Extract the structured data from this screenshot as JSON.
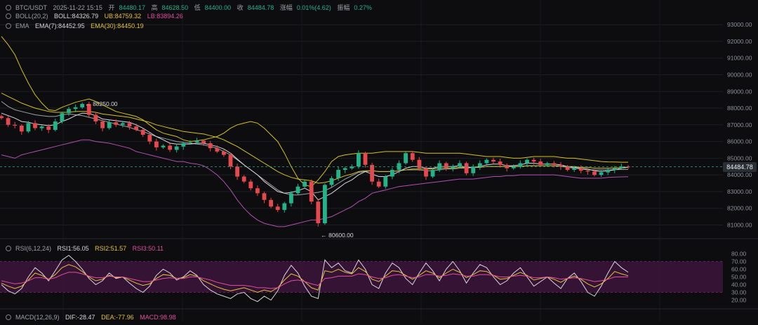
{
  "header": {
    "symbol": "BTC/USDT",
    "datetime": "2025-11-22 15:15",
    "open_label": "开",
    "open": "84480.17",
    "high_label": "高",
    "high": "84628.50",
    "low_label": "低",
    "low": "84400.00",
    "close_label": "收",
    "close": "84484.78",
    "change_label": "涨幅",
    "change": "0.01%(4.62)",
    "amplitude_label": "振幅",
    "amplitude": "0.27%"
  },
  "indicators": {
    "boll": {
      "name": "BOLL(20,2)",
      "mid": "BOLL:84326.79",
      "ub": "UB:84759.32",
      "lb": "LB:83894.26"
    },
    "ema": {
      "name": "EMA",
      "ema7": "EMA(7):84452.95",
      "ema30": "EMA(30):84450.19"
    },
    "rsi": {
      "name": "RSI(6,12,24)",
      "rsi1": "RSI1:56.05",
      "rsi2": "RSI2:51.57",
      "rsi3": "RSI3:50.11"
    },
    "macd": {
      "name": "MACD(12,26,9)",
      "dif": "DIF:-28.47",
      "dea": "DEA:-77.96",
      "macd": "MACD:98.98"
    }
  },
  "price_tag": "84484.78",
  "colors": {
    "up": "#24b389",
    "down": "#e5484d",
    "ub_line": "#d4c21c",
    "lb_line": "#b14fb4",
    "mid_line": "#9ea3aa",
    "ema7": "#d6d8dc",
    "ema30": "#d4c21c",
    "rsi1": "#d6d8dc",
    "rsi2": "#e6c23a",
    "rsi3": "#e04fa0",
    "rsi_band": "#3a1438"
  },
  "chart_data": [
    {
      "type": "candlestick",
      "y_axis_ticks": [
        "93000.00",
        "92000.00",
        "91000.00",
        "90000.00",
        "89000.00",
        "88000.00",
        "87000.00",
        "86000.00",
        "85000.00",
        "84000.00",
        "83000.00",
        "82000.00",
        "81000.00"
      ],
      "ylim": [
        80600,
        93300
      ],
      "annotations": [
        "88250.00",
        "80600.00"
      ],
      "close": [
        87400,
        87000,
        86950,
        86600,
        87100,
        86800,
        86900,
        86700,
        87200,
        87700,
        87950,
        88050,
        88250,
        87600,
        87200,
        86800,
        87150,
        87000,
        87100,
        86900,
        86700,
        86400,
        86000,
        85650,
        85750,
        85500,
        85700,
        85900,
        85950,
        86050,
        85900,
        85600,
        85400,
        85200,
        84500,
        83900,
        83600,
        83200,
        82900,
        82500,
        82100,
        81900,
        82300,
        82900,
        83300,
        83600,
        82400,
        81100,
        83400,
        83800,
        84300,
        84400,
        84500,
        85300,
        84600,
        83600,
        83300,
        83900,
        84300,
        84700,
        85300,
        84900,
        84400,
        83900,
        84300,
        84700,
        84400,
        84500,
        84700,
        84100,
        84500,
        84700,
        84900,
        84800,
        84600,
        84400,
        84500,
        84700,
        84900,
        84800,
        84600,
        84700,
        84600,
        84500,
        84300,
        84400,
        84250,
        84200,
        84000,
        84150,
        84300,
        84400,
        84500,
        84484.78
      ],
      "ub": [
        92300,
        91800,
        91200,
        90300,
        89500,
        88800,
        88300,
        87900,
        87850,
        88050,
        88200,
        88350,
        88450,
        88550,
        88400,
        88200,
        88000,
        87800,
        87700,
        87600,
        87500,
        87300,
        87000,
        86700,
        86500,
        86400,
        86300,
        86100,
        86000,
        86050,
        86100,
        86200,
        86300,
        86500,
        86800,
        87000,
        87100,
        87200,
        87100,
        86800,
        86400,
        86000,
        85300,
        84500,
        83800,
        83400,
        83300,
        83700,
        84200,
        84800,
        85100,
        85200,
        85250,
        85300,
        85300,
        85300,
        85350,
        85400,
        85400,
        85400,
        85400,
        85400,
        85350,
        85300,
        85300,
        85300,
        85300,
        85300,
        85300,
        85250,
        85200,
        85150,
        85100,
        85100,
        85100,
        85050,
        85000,
        85000,
        85050,
        85100,
        85100,
        85100,
        85100,
        85050,
        85000,
        85000,
        84950,
        84900,
        84850,
        84800,
        84780,
        84770,
        84760,
        84759
      ],
      "mid": [
        88400,
        88100,
        87900,
        87800,
        87700,
        87600,
        87550,
        87500,
        87500,
        87600,
        87650,
        87600,
        87550,
        87450,
        87350,
        87250,
        87150,
        87050,
        86950,
        86850,
        86700,
        86600,
        86450,
        86300,
        86200,
        86100,
        86000,
        85950,
        85900,
        85850,
        85800,
        85700,
        85600,
        85400,
        85200,
        84900,
        84600,
        84300,
        84000,
        83700,
        83400,
        83100,
        82900,
        82800,
        82800,
        82850,
        82900,
        82950,
        83050,
        83250,
        83500,
        83750,
        83950,
        84150,
        84200,
        84250,
        84200,
        84200,
        84200,
        84250,
        84300,
        84300,
        84300,
        84250,
        84250,
        84300,
        84350,
        84350,
        84400,
        84400,
        84450,
        84450,
        84500,
        84500,
        84500,
        84500,
        84500,
        84500,
        84550,
        84550,
        84550,
        84550,
        84550,
        84500,
        84450,
        84400,
        84350,
        84300,
        84300,
        84300,
        84300,
        84310,
        84320,
        84327
      ],
      "lb": [
        85200,
        85100,
        85000,
        85200,
        85300,
        85400,
        85500,
        85600,
        85700,
        85800,
        85900,
        86000,
        86100,
        86100,
        86000,
        85950,
        85900,
        85800,
        85700,
        85600,
        85400,
        85300,
        85200,
        85100,
        85000,
        84900,
        84800,
        84800,
        84700,
        84650,
        84550,
        84300,
        84000,
        83600,
        83100,
        82500,
        82000,
        81600,
        81300,
        81100,
        81000,
        80900,
        80900,
        81000,
        81100,
        81200,
        81300,
        81300,
        81400,
        81500,
        81700,
        81900,
        82100,
        82400,
        82600,
        82900,
        83000,
        83100,
        83200,
        83300,
        83350,
        83400,
        83450,
        83500,
        83550,
        83600,
        83650,
        83700,
        83750,
        83750,
        83750,
        83800,
        83850,
        83900,
        83900,
        83950,
        83950,
        84000,
        84000,
        84000,
        84000,
        84000,
        84000,
        83950,
        83900,
        83850,
        83800,
        83800,
        83800,
        83800,
        83850,
        83870,
        83880,
        83894
      ],
      "ema7": [
        87700,
        87550,
        87400,
        87200,
        87150,
        87050,
        87000,
        86950,
        87000,
        87200,
        87350,
        87550,
        87700,
        87680,
        87550,
        87350,
        87300,
        87250,
        87200,
        87150,
        87000,
        86800,
        86550,
        86300,
        86100,
        85900,
        85850,
        85850,
        85850,
        85900,
        85900,
        85800,
        85700,
        85550,
        85300,
        84950,
        84600,
        84300,
        84000,
        83600,
        83300,
        83000,
        82900,
        82950,
        83050,
        83200,
        83000,
        82500,
        82700,
        82900,
        83200,
        83500,
        83700,
        84000,
        84200,
        84050,
        83900,
        83900,
        84000,
        84200,
        84400,
        84500,
        84500,
        84400,
        84400,
        84500,
        84500,
        84500,
        84550,
        84450,
        84450,
        84500,
        84600,
        84650,
        84650,
        84550,
        84550,
        84600,
        84700,
        84700,
        84650,
        84650,
        84650,
        84600,
        84500,
        84450,
        84400,
        84350,
        84250,
        84200,
        84250,
        84300,
        84400,
        84453
      ],
      "ema30": [
        88900,
        88700,
        88500,
        88300,
        88150,
        88000,
        87900,
        87800,
        87750,
        87750,
        87750,
        87800,
        87800,
        87800,
        87750,
        87650,
        87600,
        87550,
        87500,
        87450,
        87350,
        87250,
        87150,
        87000,
        86900,
        86800,
        86700,
        86600,
        86550,
        86500,
        86450,
        86350,
        86250,
        86100,
        85900,
        85700,
        85450,
        85200,
        84950,
        84700,
        84450,
        84200,
        84000,
        83850,
        83750,
        83700,
        83650,
        83500,
        83550,
        83650,
        83800,
        83950,
        84050,
        84200,
        84250,
        84250,
        84200,
        84200,
        84200,
        84250,
        84300,
        84350,
        84350,
        84350,
        84350,
        84400,
        84400,
        84400,
        84450,
        84450,
        84450,
        84450,
        84500,
        84500,
        84500,
        84500,
        84500,
        84500,
        84550,
        84550,
        84550,
        84550,
        84550,
        84550,
        84500,
        84500,
        84450,
        84450,
        84400,
        84400,
        84400,
        84420,
        84440,
        84450
      ]
    },
    {
      "type": "line",
      "y_axis_ticks": [
        "80.00",
        "70.00",
        "60.00",
        "50.00",
        "40.00",
        "30.00",
        "20.00"
      ],
      "ylim": [
        15,
        85
      ],
      "series": [
        {
          "name": "RSI1",
          "values": [
            40,
            32,
            28,
            35,
            50,
            62,
            55,
            45,
            58,
            72,
            78,
            70,
            60,
            48,
            40,
            45,
            55,
            48,
            50,
            42,
            35,
            30,
            38,
            52,
            60,
            55,
            46,
            50,
            58,
            52,
            40,
            33,
            28,
            25,
            22,
            28,
            30,
            22,
            18,
            25,
            20,
            32,
            52,
            65,
            55,
            38,
            25,
            22,
            72,
            62,
            68,
            58,
            55,
            72,
            60,
            40,
            35,
            55,
            68,
            62,
            48,
            40,
            55,
            68,
            58,
            45,
            60,
            70,
            58,
            42,
            55,
            66,
            62,
            50,
            40,
            45,
            55,
            62,
            50,
            38,
            44,
            50,
            42,
            35,
            48,
            55,
            44,
            30,
            25,
            38,
            55,
            70,
            62,
            56
          ]
        },
        {
          "name": "RSI2",
          "values": [
            42,
            38,
            35,
            38,
            46,
            55,
            52,
            47,
            53,
            62,
            66,
            63,
            57,
            50,
            45,
            47,
            52,
            49,
            50,
            46,
            42,
            39,
            41,
            48,
            53,
            52,
            48,
            49,
            53,
            51,
            45,
            41,
            37,
            34,
            32,
            34,
            36,
            33,
            30,
            33,
            31,
            36,
            46,
            54,
            51,
            44,
            36,
            33,
            58,
            56,
            60,
            56,
            54,
            62,
            57,
            47,
            44,
            51,
            58,
            57,
            52,
            47,
            52,
            58,
            55,
            49,
            55,
            60,
            56,
            49,
            53,
            58,
            57,
            52,
            47,
            48,
            52,
            56,
            52,
            46,
            48,
            50,
            47,
            43,
            48,
            51,
            47,
            41,
            37,
            41,
            48,
            57,
            54,
            51.57
          ]
        },
        {
          "name": "RSI3",
          "values": [
            45,
            43,
            41,
            42,
            45,
            49,
            49,
            47,
            49,
            53,
            56,
            56,
            54,
            51,
            49,
            49,
            51,
            50,
            50,
            48,
            46,
            44,
            44,
            46,
            48,
            49,
            48,
            48,
            50,
            50,
            48,
            46,
            43,
            41,
            39,
            39,
            39,
            38,
            36,
            36,
            35,
            36,
            41,
            45,
            46,
            44,
            41,
            39,
            48,
            49,
            51,
            51,
            51,
            54,
            53,
            50,
            48,
            49,
            52,
            53,
            51,
            49,
            50,
            53,
            53,
            51,
            52,
            54,
            53,
            51,
            51,
            53,
            53,
            52,
            50,
            50,
            51,
            52,
            51,
            49,
            49,
            50,
            49,
            47,
            48,
            49,
            48,
            46,
            44,
            45,
            47,
            50,
            50,
            50.11
          ]
        }
      ]
    }
  ]
}
